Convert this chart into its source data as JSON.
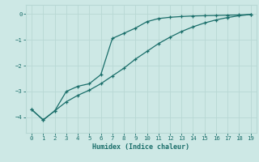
{
  "xlabel": "Humidex (Indice chaleur)",
  "bg_color": "#cde8e5",
  "grid_color": "#b8d8d4",
  "line_color": "#1a6e6a",
  "xlim": [
    -0.5,
    19.5
  ],
  "ylim": [
    -4.6,
    0.35
  ],
  "xticks": [
    0,
    1,
    2,
    3,
    4,
    5,
    6,
    7,
    8,
    9,
    10,
    11,
    12,
    13,
    14,
    15,
    16,
    17,
    18,
    19
  ],
  "yticks": [
    0,
    -1,
    -2,
    -3,
    -4
  ],
  "line1_x": [
    0,
    1,
    2,
    3,
    4,
    5,
    6,
    7,
    8,
    9,
    10,
    11,
    12,
    13,
    14,
    15,
    16,
    17,
    18,
    19
  ],
  "line1_y": [
    -3.7,
    -4.1,
    -3.75,
    -3.0,
    -2.8,
    -2.7,
    -2.35,
    -0.95,
    -0.75,
    -0.55,
    -0.3,
    -0.18,
    -0.13,
    -0.1,
    -0.08,
    -0.07,
    -0.06,
    -0.05,
    -0.04,
    -0.02
  ],
  "line2_x": [
    0,
    1,
    2,
    3,
    4,
    5,
    6,
    7,
    8,
    9,
    10,
    11,
    12,
    13,
    14,
    15,
    16,
    17,
    18,
    19
  ],
  "line2_y": [
    -3.7,
    -4.1,
    -3.75,
    -3.4,
    -3.15,
    -2.95,
    -2.7,
    -2.4,
    -2.1,
    -1.75,
    -1.45,
    -1.15,
    -0.9,
    -0.68,
    -0.5,
    -0.35,
    -0.23,
    -0.14,
    -0.07,
    -0.02
  ]
}
